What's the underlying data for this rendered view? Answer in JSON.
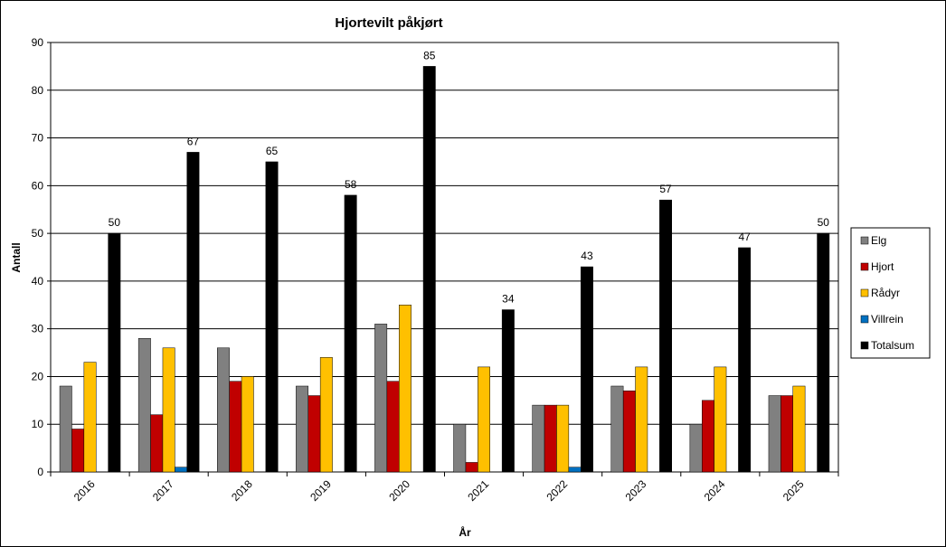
{
  "chart_data": {
    "type": "bar",
    "title": "Hjortevilt påkjørt",
    "x_label": "År",
    "y_label": "Antall",
    "categories": [
      "2016",
      "2017",
      "2018",
      "2019",
      "2020",
      "2021",
      "2022",
      "2023",
      "2024",
      "2025"
    ],
    "series": [
      {
        "name": "Elg",
        "color": "#808080",
        "values": [
          18,
          28,
          26,
          18,
          31,
          10,
          14,
          18,
          10,
          16
        ]
      },
      {
        "name": "Hjort",
        "color": "#c00000",
        "values": [
          9,
          12,
          19,
          16,
          19,
          2,
          14,
          17,
          15,
          16
        ]
      },
      {
        "name": "Rådyr",
        "color": "#ffc000",
        "values": [
          23,
          26,
          20,
          24,
          35,
          22,
          14,
          22,
          22,
          18
        ]
      },
      {
        "name": "Villrein",
        "color": "#0070c0",
        "values": [
          0,
          1,
          0,
          0,
          0,
          0,
          1,
          0,
          0,
          0
        ]
      },
      {
        "name": "Totalsum",
        "color": "#000000",
        "values": [
          50,
          67,
          65,
          58,
          85,
          34,
          43,
          57,
          47,
          50
        ],
        "data_labels": true
      }
    ],
    "ylim": [
      0,
      90
    ],
    "yticks": [
      0,
      10,
      20,
      30,
      40,
      50,
      60,
      70,
      80,
      90
    ],
    "grid": true,
    "legend": "right"
  }
}
